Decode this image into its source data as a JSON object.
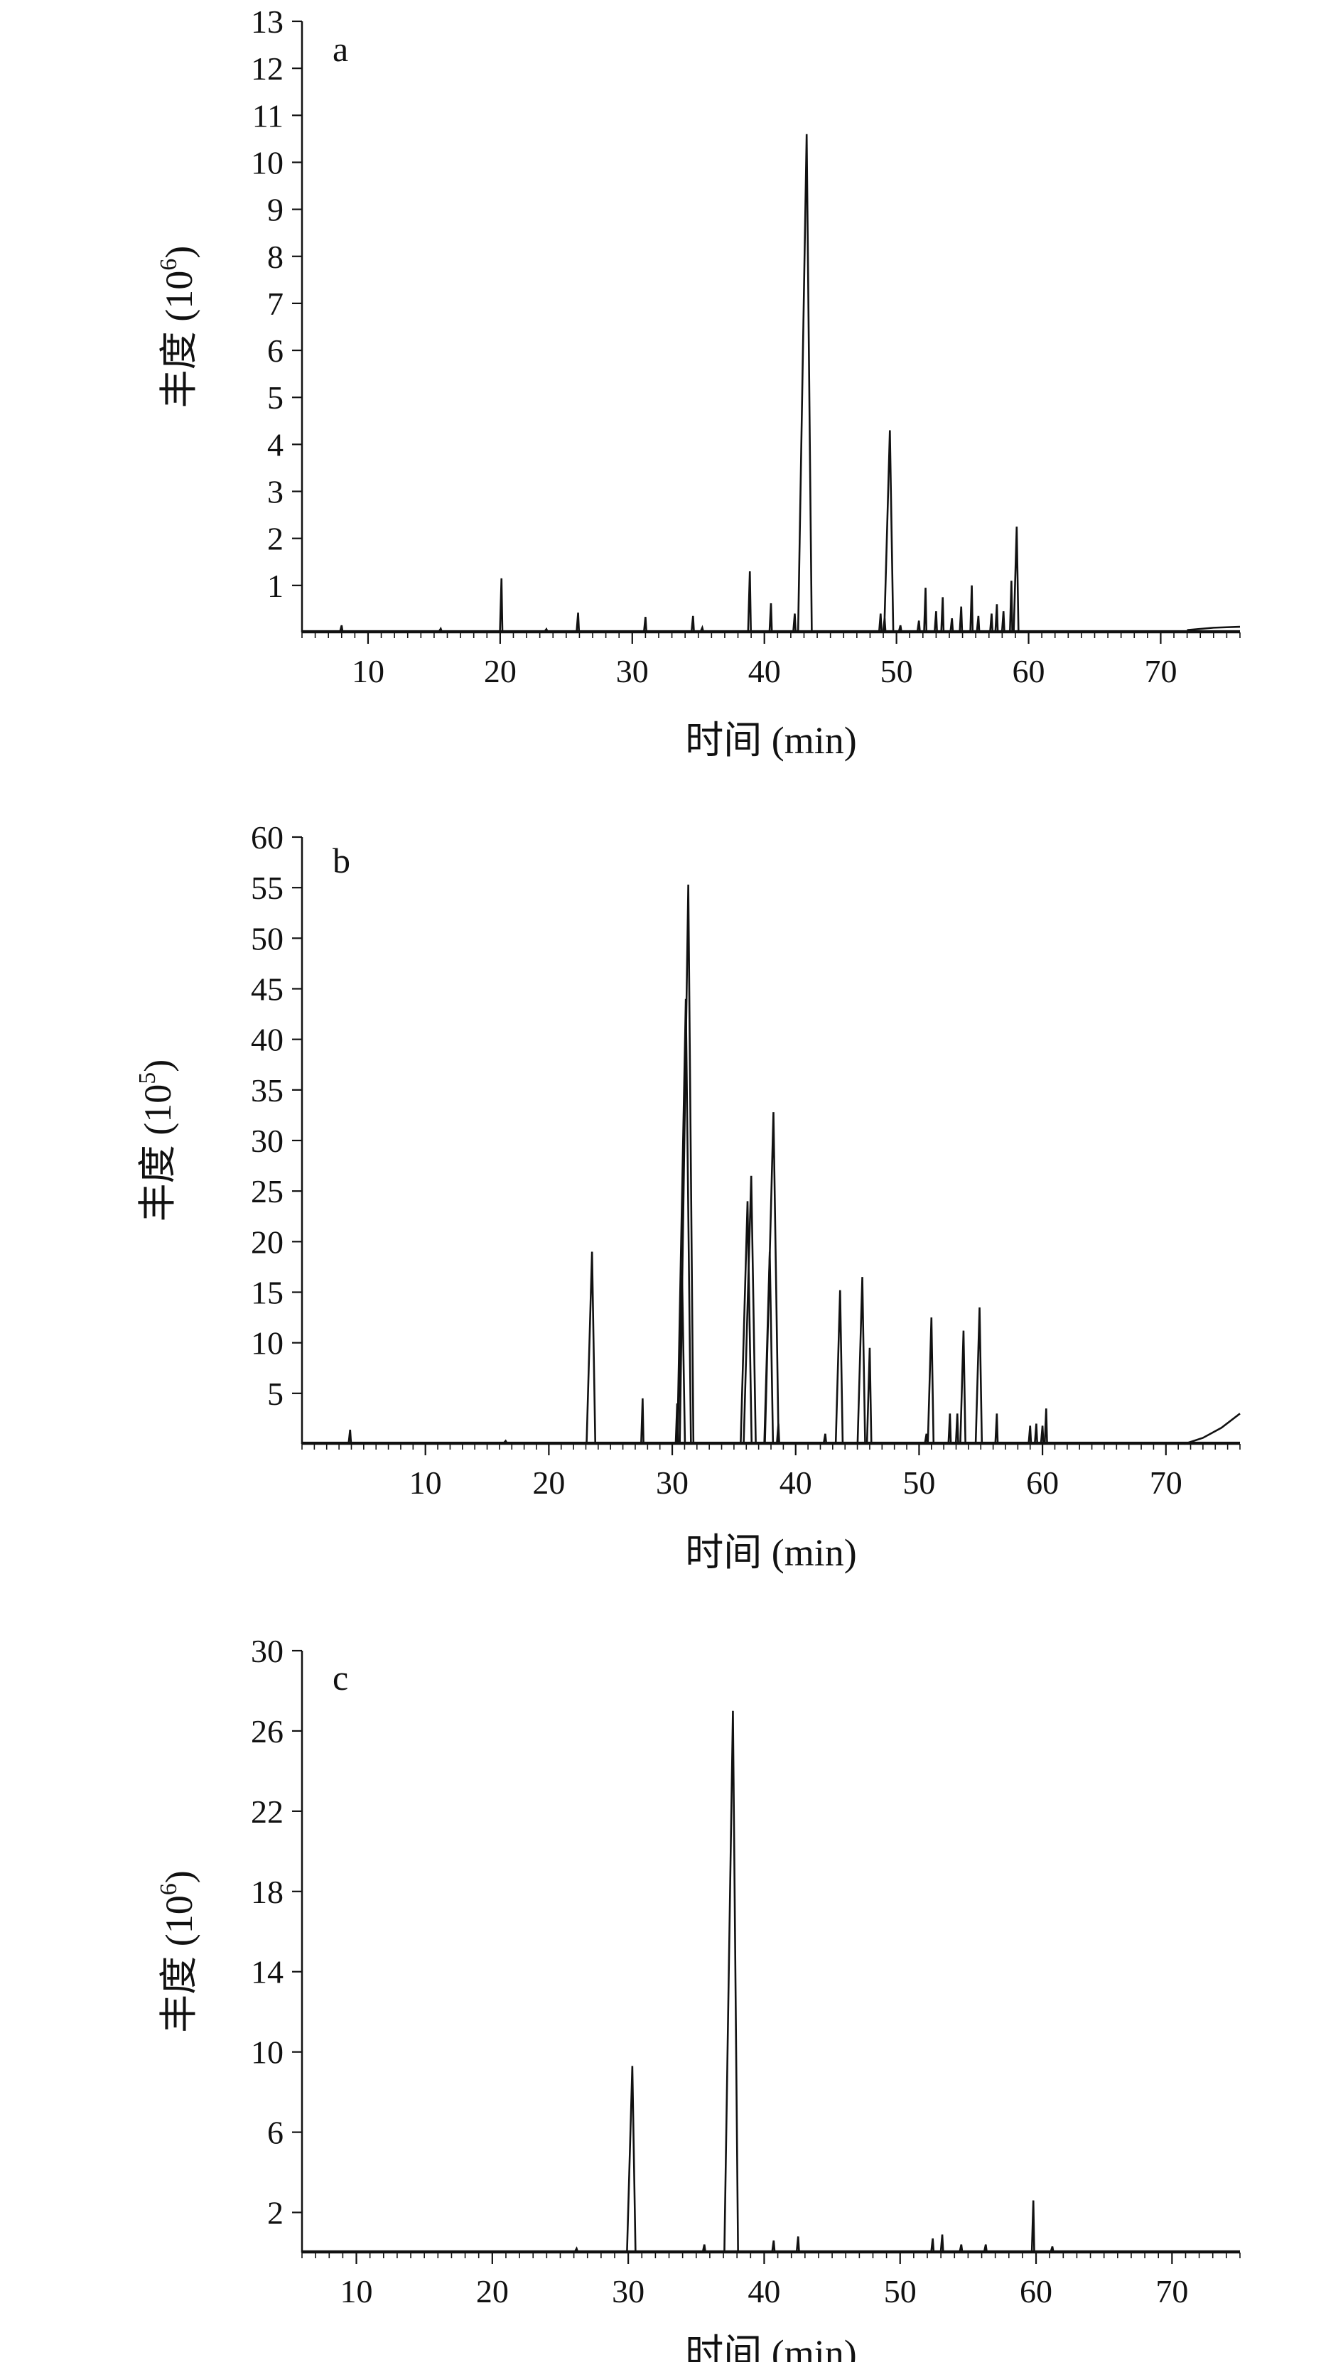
{
  "chart_data": [
    {
      "type": "line",
      "panel_label": "a",
      "ylabel": "丰度 (10",
      "ylabel_exp": "6",
      "ylabel_close": ")",
      "xlabel": "时间 (min)",
      "xlim": [
        5,
        76
      ],
      "ylim": [
        0,
        13
      ],
      "xticks": [
        10,
        20,
        30,
        40,
        50,
        60,
        70
      ],
      "yticks": [
        1,
        2,
        3,
        4,
        5,
        6,
        7,
        8,
        9,
        10,
        11,
        12,
        13
      ],
      "baseline_tail": [
        [
          72,
          0.05
        ],
        [
          74,
          0.1
        ],
        [
          76,
          0.12
        ]
      ],
      "peaks": [
        [
          8,
          0.15
        ],
        [
          15.5,
          0.08
        ],
        [
          20.1,
          1.15
        ],
        [
          23.5,
          0.07
        ],
        [
          25.9,
          0.42
        ],
        [
          31,
          0.33
        ],
        [
          34.6,
          0.35
        ],
        [
          35.3,
          0.1
        ],
        [
          38.9,
          1.3
        ],
        [
          40.5,
          0.62
        ],
        [
          42.3,
          0.4
        ],
        [
          43.2,
          10.6
        ],
        [
          48.8,
          0.4
        ],
        [
          49.1,
          0.3
        ],
        [
          49.5,
          4.3
        ],
        [
          50.3,
          0.15
        ],
        [
          51.7,
          0.25
        ],
        [
          52.2,
          0.95
        ],
        [
          53,
          0.45
        ],
        [
          53.5,
          0.75
        ],
        [
          54.2,
          0.3
        ],
        [
          54.9,
          0.55
        ],
        [
          55.7,
          1.0
        ],
        [
          56.2,
          0.35
        ],
        [
          57.2,
          0.4
        ],
        [
          57.6,
          0.6
        ],
        [
          58.1,
          0.45
        ],
        [
          58.7,
          1.1
        ],
        [
          59.1,
          2.25
        ]
      ]
    },
    {
      "type": "line",
      "panel_label": "b",
      "ylabel": "丰度 (10",
      "ylabel_exp": "5",
      "ylabel_close": ")",
      "xlabel": "时间 (min)",
      "xlim": [
        0,
        76
      ],
      "ylim": [
        0,
        60
      ],
      "xticks": [
        10,
        20,
        30,
        40,
        50,
        60,
        70
      ],
      "yticks": [
        5,
        10,
        15,
        20,
        25,
        30,
        35,
        40,
        45,
        50,
        55,
        60
      ],
      "baseline_tail": [
        [
          71.5,
          0
        ],
        [
          73,
          0.6
        ],
        [
          74.5,
          1.6
        ],
        [
          76,
          3.0
        ]
      ],
      "peaks": [
        [
          3.9,
          1.4
        ],
        [
          16.5,
          0.3
        ],
        [
          23.5,
          19
        ],
        [
          27.6,
          4.5
        ],
        [
          30.4,
          4
        ],
        [
          30.8,
          16.5
        ],
        [
          31.1,
          44
        ],
        [
          31.3,
          55.3
        ],
        [
          36.1,
          24
        ],
        [
          36.4,
          26.5
        ],
        [
          37.9,
          19
        ],
        [
          38.2,
          32.8
        ],
        [
          38.6,
          2
        ],
        [
          42.4,
          1
        ],
        [
          43.6,
          15.2
        ],
        [
          45.4,
          16.5
        ],
        [
          46,
          9.5
        ],
        [
          50.6,
          1
        ],
        [
          51,
          12.5
        ],
        [
          52.5,
          3
        ],
        [
          53.1,
          3
        ],
        [
          53.6,
          11.2
        ],
        [
          54.9,
          13.5
        ],
        [
          56.3,
          3
        ],
        [
          59,
          1.8
        ],
        [
          59.5,
          2
        ],
        [
          60,
          1.8
        ],
        [
          60.3,
          3.5
        ]
      ]
    },
    {
      "type": "line",
      "panel_label": "c",
      "ylabel": "丰度 (10",
      "ylabel_exp": "6",
      "ylabel_close": ")",
      "xlabel": "时间 (min)",
      "xlim": [
        6,
        75
      ],
      "ylim": [
        0,
        30
      ],
      "xticks": [
        10,
        20,
        30,
        40,
        50,
        60,
        70
      ],
      "yticks": [
        2,
        6,
        10,
        14,
        18,
        22,
        26,
        30
      ],
      "baseline_tail": [],
      "peaks": [
        [
          26.2,
          0.2
        ],
        [
          30.3,
          9.3
        ],
        [
          35.6,
          0.4
        ],
        [
          37.7,
          27
        ],
        [
          40.7,
          0.6
        ],
        [
          42.5,
          0.8
        ],
        [
          52.4,
          0.7
        ],
        [
          53.1,
          0.9
        ],
        [
          54.5,
          0.4
        ],
        [
          56.3,
          0.4
        ],
        [
          59.8,
          2.6
        ],
        [
          61.2,
          0.3
        ]
      ]
    }
  ]
}
